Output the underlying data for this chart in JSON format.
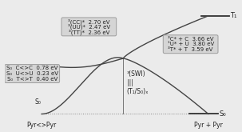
{
  "bg_color": "#ebebeb",
  "curve_color": "#444444",
  "line_color": "#888888",
  "box_bg": "#d4d4d4",
  "box_edge": "#999999",
  "text_color": "#222222",
  "left_box": {
    "lines": [
      "S₀  C<>C  0.78 eV",
      "S₀  U<>U  0.23 eV",
      "S₀  T<>T  0.40 eV"
    ]
  },
  "mid_box": {
    "lines": [
      "³(CC)*  2.70 eV",
      "³(UU)*  2.47 eV",
      "³(TT)*  2.36 eV"
    ]
  },
  "right_box": {
    "lines": [
      "³C* + C  3.66 eV",
      "¹U* + U  3.80 eV",
      "³T* + T  3.59 eV"
    ]
  },
  "label_swi_line1": "³(SWI)",
  "label_swi_line2": "|||",
  "label_swi_line3": "(T₁/S₀)ₓ",
  "label_s0_left": "S₀",
  "label_s0_right": "S₀",
  "label_t1": "T₁",
  "label_left_bottom": "Pyr<>Pyr",
  "label_right_bottom": "Pyr + Pyr",
  "xlim": [
    0,
    10
  ],
  "ylim": [
    -0.5,
    5.5
  ]
}
